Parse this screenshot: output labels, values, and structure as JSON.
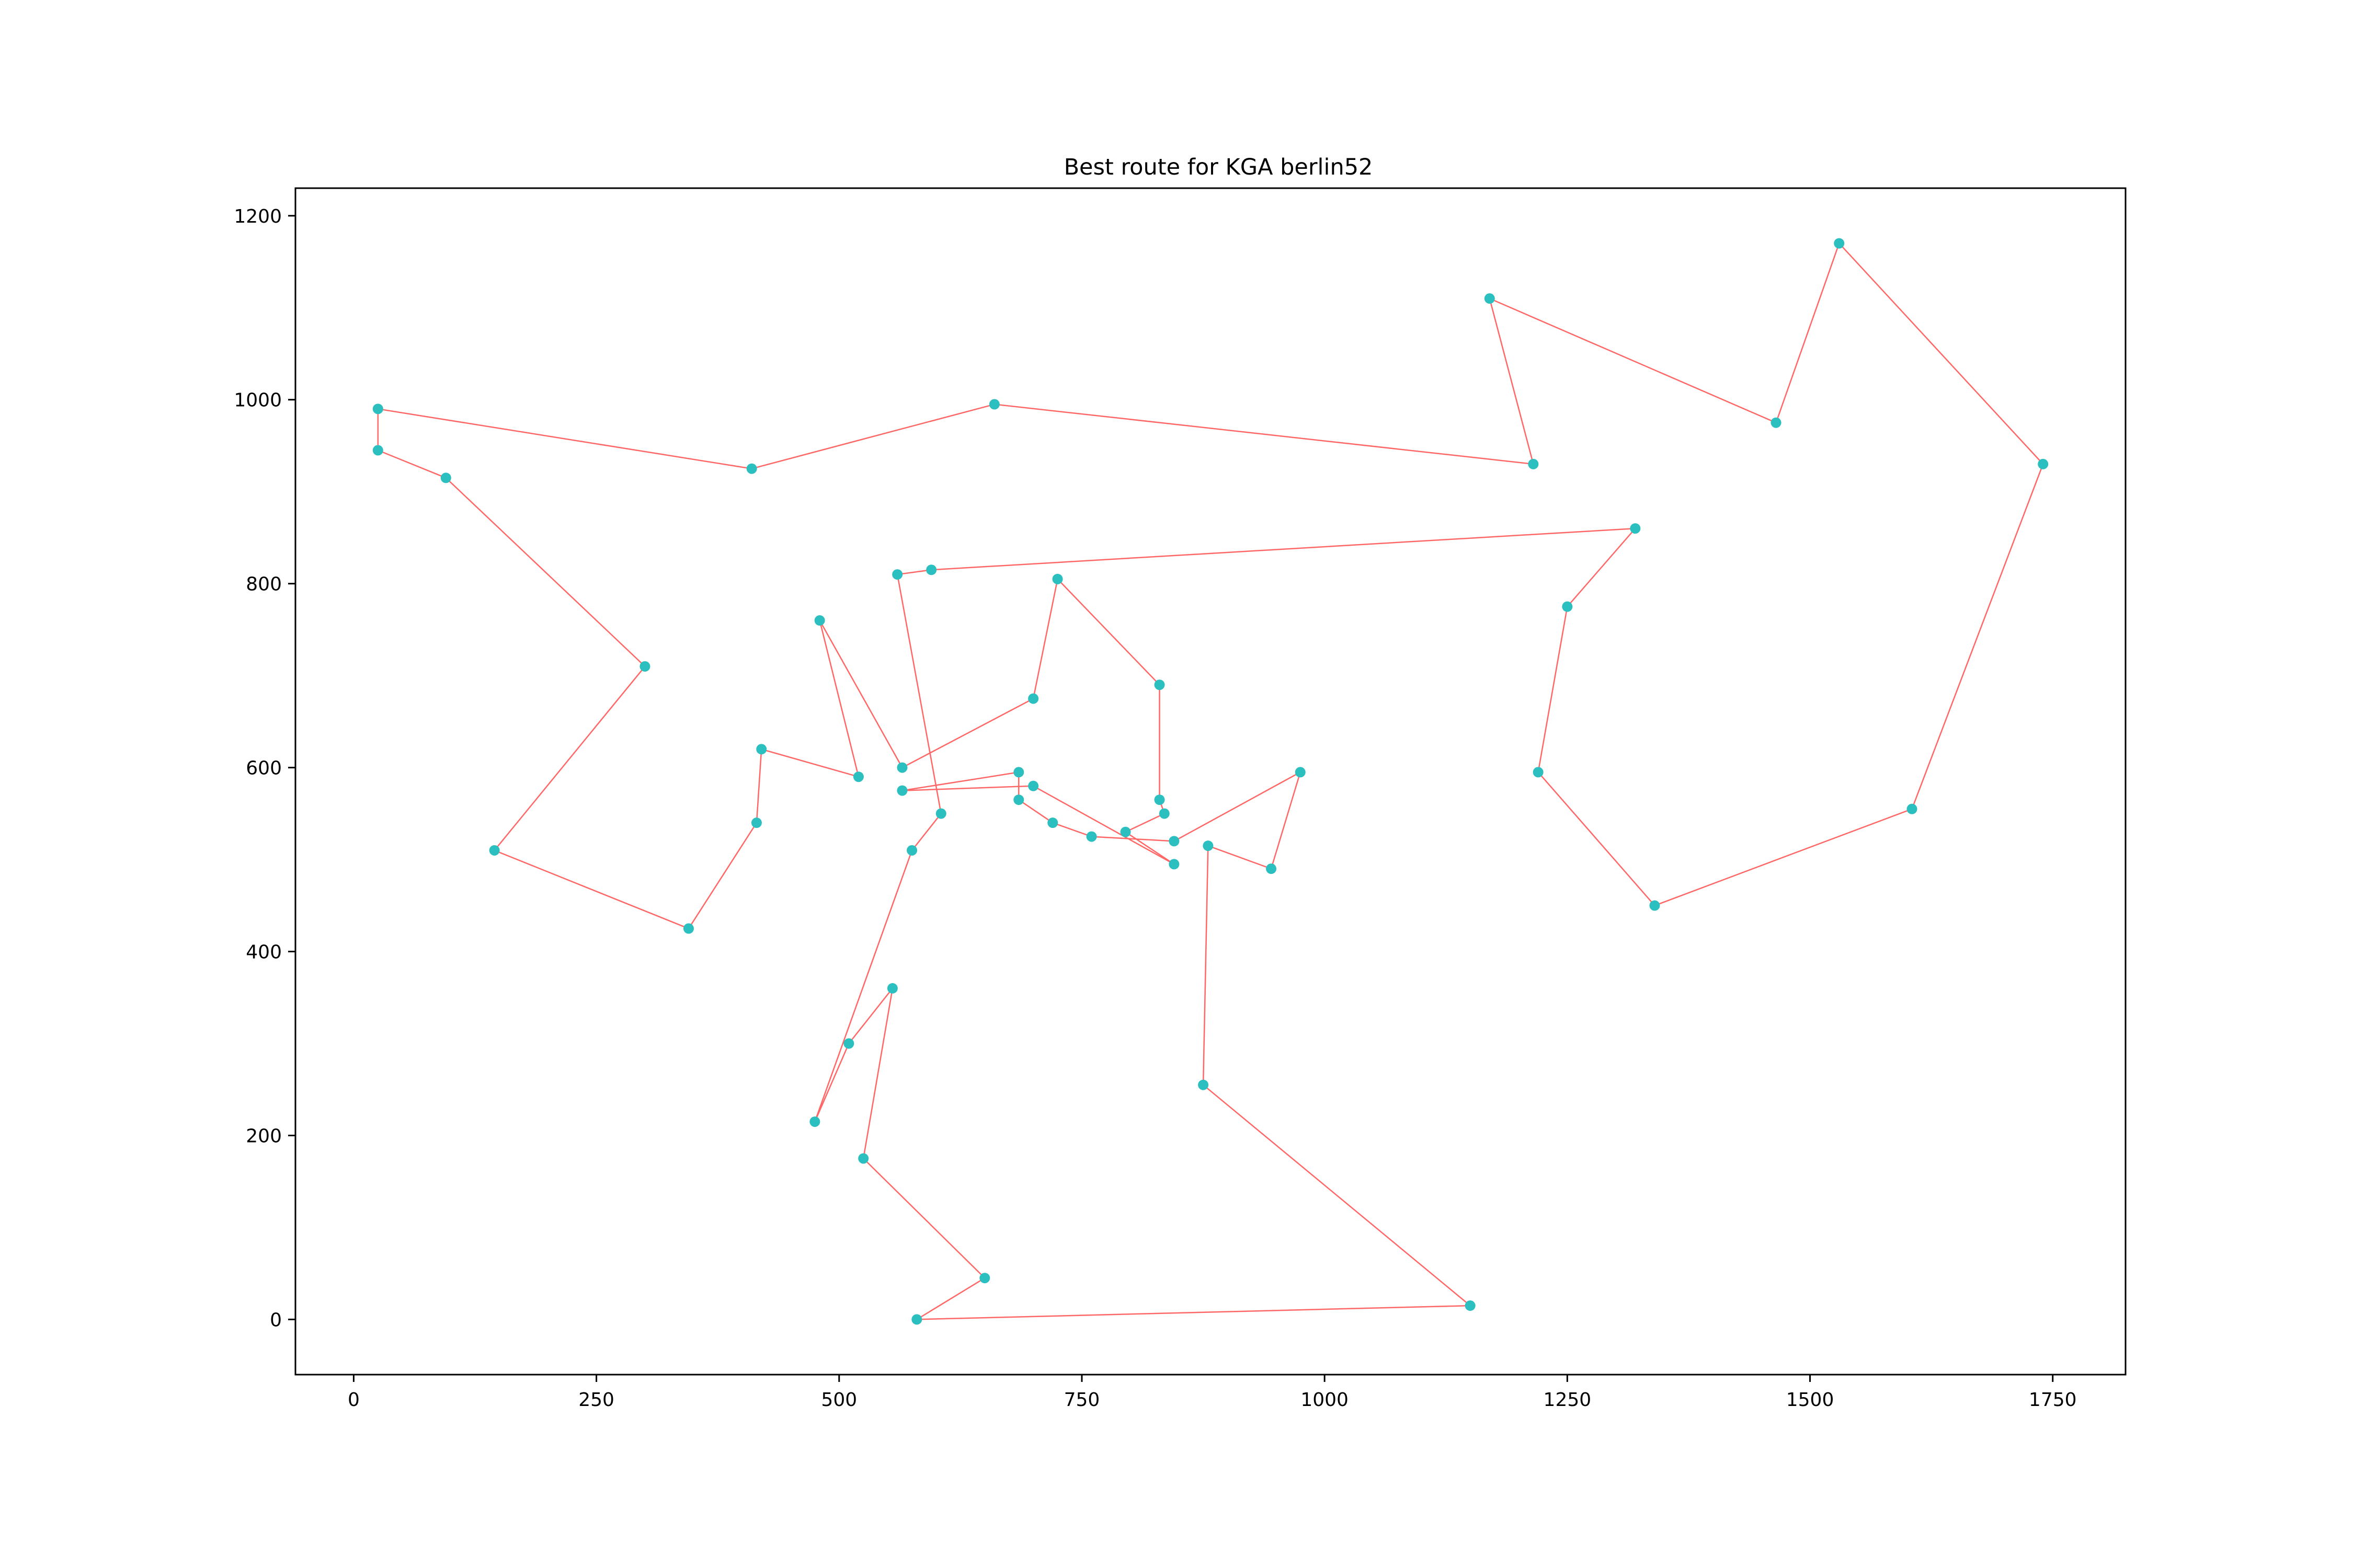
{
  "chart_data": {
    "type": "line",
    "title": "Best route for KGA berlin52",
    "xlabel": "",
    "ylabel": "",
    "xlim": [
      -60,
      1825
    ],
    "ylim": [
      -60,
      1230
    ],
    "xticks": [
      0,
      250,
      500,
      750,
      1000,
      1250,
      1500,
      1750
    ],
    "yticks": [
      0,
      200,
      400,
      600,
      800,
      1000,
      1200
    ],
    "grid": false,
    "line_color": "#ff6666",
    "marker_color": "#2bbfbf",
    "route": [
      [
        565,
        575
      ],
      [
        685,
        595
      ],
      [
        685,
        565
      ],
      [
        720,
        540
      ],
      [
        760,
        525
      ],
      [
        845,
        520
      ],
      [
        975,
        595
      ],
      [
        945,
        490
      ],
      [
        880,
        515
      ],
      [
        875,
        255
      ],
      [
        1150,
        15
      ],
      [
        580,
        0
      ],
      [
        650,
        45
      ],
      [
        525,
        175
      ],
      [
        555,
        360
      ],
      [
        510,
        300
      ],
      [
        475,
        215
      ],
      [
        575,
        510
      ],
      [
        605,
        550
      ],
      [
        560,
        810
      ],
      [
        595,
        815
      ],
      [
        1320,
        860
      ],
      [
        1250,
        775
      ],
      [
        1220,
        595
      ],
      [
        1340,
        450
      ],
      [
        1605,
        555
      ],
      [
        1740,
        930
      ],
      [
        1530,
        1170
      ],
      [
        1465,
        975
      ],
      [
        1170,
        1110
      ],
      [
        1215,
        930
      ],
      [
        660,
        995
      ],
      [
        410,
        925
      ],
      [
        25,
        990
      ],
      [
        25,
        945
      ],
      [
        95,
        915
      ],
      [
        300,
        710
      ],
      [
        145,
        510
      ],
      [
        345,
        425
      ],
      [
        415,
        540
      ],
      [
        420,
        620
      ],
      [
        520,
        590
      ],
      [
        480,
        760
      ],
      [
        565,
        600
      ],
      [
        700,
        675
      ],
      [
        725,
        805
      ],
      [
        830,
        690
      ],
      [
        830,
        565
      ],
      [
        835,
        550
      ],
      [
        795,
        530
      ],
      [
        845,
        495
      ],
      [
        700,
        580
      ],
      [
        565,
        575
      ]
    ]
  }
}
